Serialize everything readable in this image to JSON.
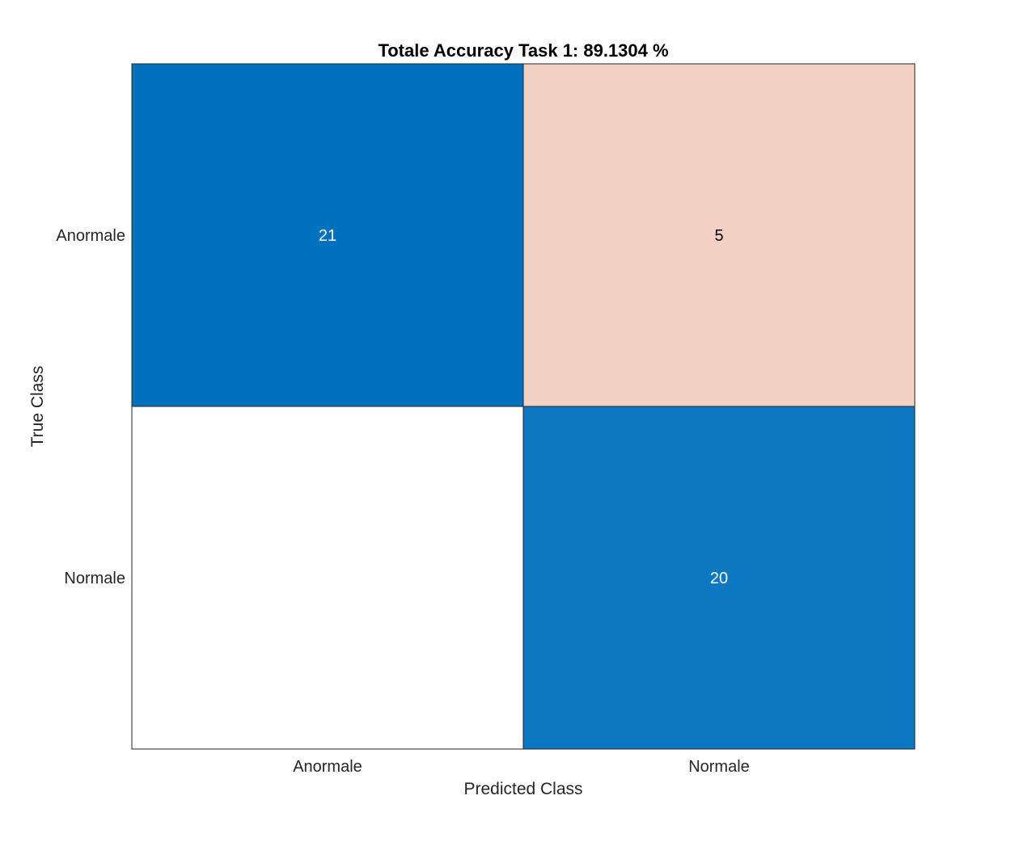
{
  "chart_data": {
    "type": "heatmap",
    "title": "Totale Accuracy Task 1: 89.1304 %",
    "xlabel": "Predicted Class",
    "ylabel": "True Class",
    "x_categories": [
      "Anormale",
      "Normale"
    ],
    "y_categories": [
      "Anormale",
      "Normale"
    ],
    "cells": [
      {
        "row": 0,
        "col": 0,
        "value": 21,
        "label": "21",
        "color": "#0072BD",
        "text_color": "#FFFFFF"
      },
      {
        "row": 0,
        "col": 1,
        "value": 5,
        "label": "5",
        "color": "#F4D1C5",
        "text_color": "#000000"
      },
      {
        "row": 1,
        "col": 0,
        "value": 0,
        "label": "",
        "color": "#FFFFFF",
        "text_color": "#000000"
      },
      {
        "row": 1,
        "col": 1,
        "value": 20,
        "label": "20",
        "color": "#0C78C1",
        "text_color": "#FFFFFF"
      }
    ],
    "grid": true,
    "legend": "none"
  }
}
